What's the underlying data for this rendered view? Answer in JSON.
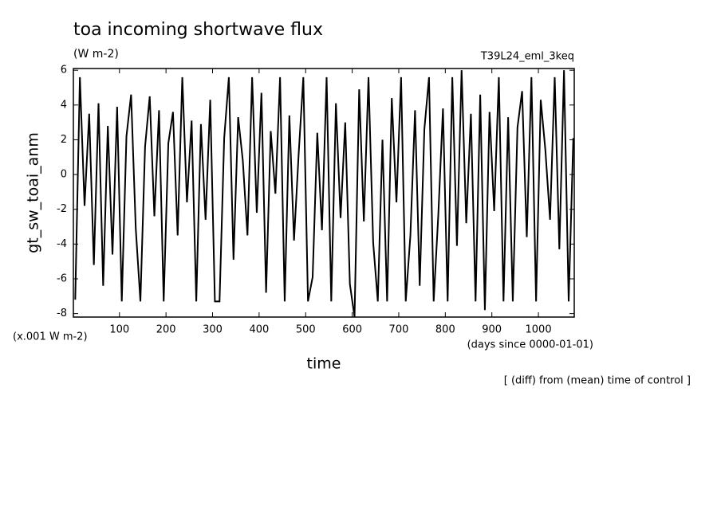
{
  "chart_data": {
    "type": "line",
    "title": "toa incoming shortwave flux",
    "units": "(W m-2)",
    "experiment": "T39L24_eml_3keq",
    "y_label": "gt_sw_toai_anm",
    "y_scale_note": "(x.001 W m-2)",
    "x_label": "time",
    "x_units": "(days since 0000-01-01)",
    "footnote": "[ (diff) from (mean) time of control ]",
    "color": "#000000",
    "xlim": [
      1,
      1077
    ],
    "ylim": [
      -8.2,
      6.1
    ],
    "xticks": [
      100,
      200,
      300,
      400,
      500,
      600,
      700,
      800,
      900,
      1000
    ],
    "yticks": [
      -8,
      -6,
      -4,
      -2,
      0,
      2,
      4,
      6
    ],
    "x": [
      5,
      15,
      25,
      35,
      45,
      55,
      65,
      75,
      85,
      95,
      105,
      115,
      125,
      135,
      145,
      155,
      165,
      175,
      185,
      195,
      205,
      215,
      225,
      235,
      245,
      255,
      265,
      275,
      285,
      295,
      305,
      315,
      325,
      335,
      345,
      355,
      365,
      375,
      385,
      395,
      405,
      415,
      425,
      435,
      445,
      455,
      465,
      475,
      485,
      495,
      505,
      515,
      525,
      535,
      545,
      555,
      565,
      575,
      585,
      595,
      605,
      615,
      625,
      635,
      645,
      655,
      665,
      675,
      685,
      695,
      705,
      715,
      725,
      735,
      745,
      755,
      765,
      775,
      785,
      795,
      805,
      815,
      825,
      835,
      845,
      855,
      865,
      875,
      885,
      895,
      905,
      915,
      925,
      935,
      945,
      955,
      965,
      975,
      985,
      995,
      1005,
      1015,
      1025,
      1035,
      1045,
      1055,
      1065,
      1075
    ],
    "values": [
      -7.2,
      5.6,
      -1.8,
      3.5,
      -5.2,
      4.1,
      -6.4,
      2.8,
      -4.6,
      3.9,
      -7.3,
      2.2,
      4.6,
      -3.1,
      -7.3,
      1.6,
      4.5,
      -2.4,
      3.7,
      -7.3,
      1.8,
      3.6,
      -3.5,
      5.6,
      -1.6,
      3.1,
      -7.3,
      2.9,
      -2.6,
      4.3,
      -7.3,
      -7.3,
      2.1,
      5.6,
      -4.9,
      3.3,
      0.8,
      -3.5,
      5.6,
      -2.2,
      4.7,
      -6.8,
      2.5,
      -1.1,
      5.6,
      -7.3,
      3.4,
      -3.8,
      1.2,
      5.6,
      -7.3,
      -5.9,
      2.4,
      -3.2,
      5.6,
      -7.3,
      4.1,
      -2.5,
      3.0,
      -6.3,
      -8.2,
      4.9,
      -2.7,
      5.6,
      -3.9,
      -7.3,
      2.0,
      -7.3,
      4.4,
      -1.6,
      5.6,
      -7.3,
      -3.5,
      3.7,
      -6.4,
      2.6,
      5.6,
      -7.3,
      -2.3,
      3.8,
      -7.3,
      5.6,
      -4.1,
      6.0,
      -2.8,
      3.5,
      -7.3,
      4.6,
      -7.8,
      3.6,
      -2.1,
      5.6,
      -7.3,
      3.3,
      -7.3,
      2.7,
      4.8,
      -3.6,
      5.6,
      -7.3,
      4.3,
      1.4,
      -2.6,
      5.6,
      -4.3,
      6.0,
      -7.3,
      2.1
    ]
  }
}
